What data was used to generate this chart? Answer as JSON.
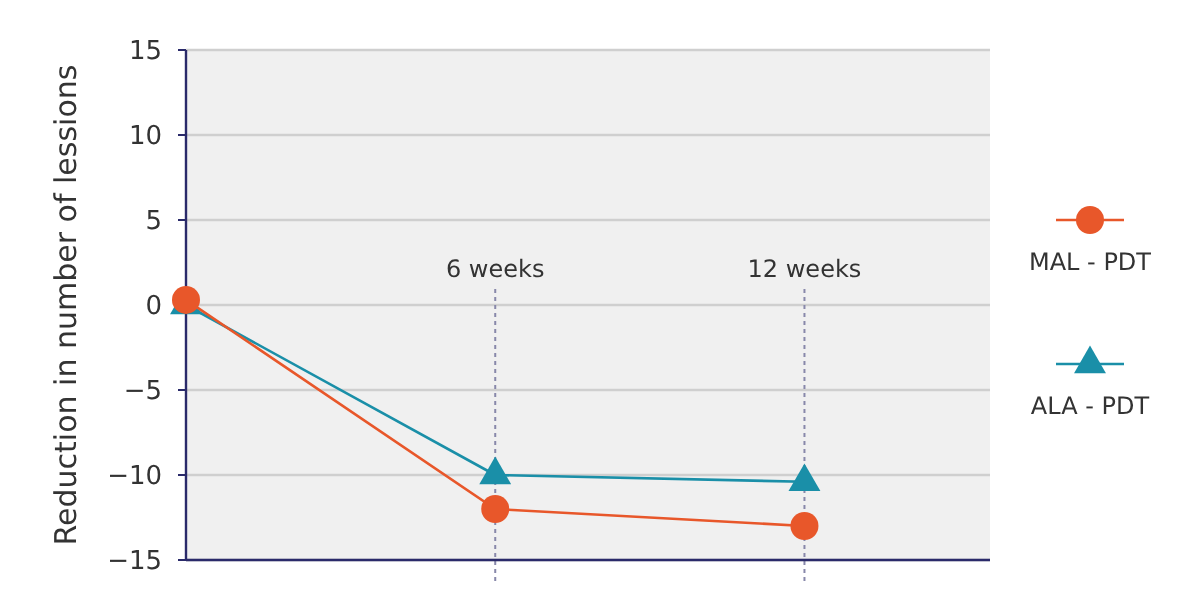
{
  "chart_data": {
    "type": "line",
    "ylabel": "Reduction in number of lessions",
    "x": [
      0,
      6,
      12
    ],
    "xlim": [
      0,
      15.6
    ],
    "ylim": [
      -15,
      15
    ],
    "yticks": [
      -15,
      -10,
      -5,
      0,
      5,
      10,
      15
    ],
    "tick_labels": "y",
    "grid": "y",
    "legend": "right",
    "series": [
      {
        "name": "MAL - PDT",
        "color": "#e8572a",
        "marker": "circle",
        "values": [
          0.3,
          -12,
          -13
        ]
      },
      {
        "name": "ALA - PDT",
        "color": "#1a8fa8",
        "marker": "triangle",
        "values": [
          0,
          -10,
          -10.4
        ]
      }
    ],
    "ref_lines": [
      {
        "axis": "x",
        "value": 6,
        "label": "6 weeks",
        "line_style": "dotted",
        "color": "#8888aa"
      },
      {
        "axis": "x",
        "value": 12,
        "label": "12 weeks",
        "line_style": "dotted",
        "color": "#8888aa"
      }
    ]
  }
}
